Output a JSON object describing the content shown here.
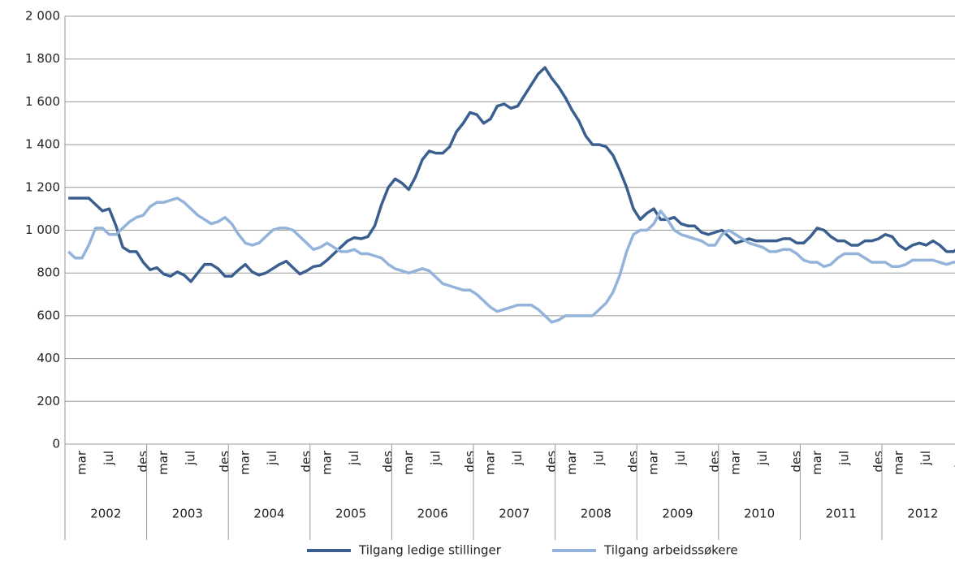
{
  "chart_data": {
    "type": "line",
    "categories": [
      null,
      null,
      "mar",
      null,
      null,
      null,
      "jul",
      null,
      null,
      null,
      null,
      "des",
      null,
      null,
      "mar",
      null,
      null,
      null,
      "jul",
      null,
      null,
      null,
      null,
      "des",
      null,
      null,
      "mar",
      null,
      null,
      null,
      "jul",
      null,
      null,
      null,
      null,
      "des",
      null,
      null,
      "mar",
      null,
      null,
      null,
      "jul",
      null,
      null,
      null,
      null,
      "des",
      null,
      null,
      "mar",
      null,
      null,
      null,
      "jul",
      null,
      null,
      null,
      null,
      "des",
      null,
      null,
      "mar",
      null,
      null,
      null,
      "jul",
      null,
      null,
      null,
      null,
      "des",
      null,
      null,
      "mar",
      null,
      null,
      null,
      "jul",
      null,
      null,
      null,
      null,
      "des",
      null,
      null,
      "mar",
      null,
      null,
      null,
      "jul",
      null,
      null,
      null,
      null,
      "des",
      null,
      null,
      "mar",
      null,
      null,
      null,
      "jul",
      null,
      null,
      null,
      null,
      "des",
      null,
      null,
      "mar",
      null,
      null,
      null,
      "jul",
      null,
      null,
      null,
      null,
      "des",
      null,
      null,
      "mar",
      null,
      null,
      null,
      "jul",
      null,
      null,
      null,
      null,
      "des"
    ],
    "year_groups": [
      "2002",
      "2003",
      "2004",
      "2005",
      "2006",
      "2007",
      "2008",
      "2009",
      "2010",
      "2011",
      "2012"
    ],
    "series": [
      {
        "name": "Tilgang ledige stillinger",
        "color": "#3a5f8f",
        "values": [
          1150,
          1150,
          1150,
          1150,
          1120,
          1090,
          1100,
          1020,
          920,
          900,
          900,
          850,
          815,
          825,
          795,
          785,
          805,
          790,
          760,
          800,
          840,
          840,
          820,
          785,
          785,
          815,
          840,
          805,
          790,
          800,
          820,
          840,
          855,
          825,
          795,
          810,
          830,
          835,
          860,
          890,
          920,
          950,
          965,
          960,
          970,
          1020,
          1120,
          1200,
          1240,
          1220,
          1190,
          1250,
          1330,
          1370,
          1360,
          1360,
          1390,
          1460,
          1500,
          1550,
          1540,
          1500,
          1520,
          1580,
          1590,
          1570,
          1580,
          1630,
          1680,
          1730,
          1760,
          1710,
          1670,
          1620,
          1560,
          1510,
          1440,
          1400,
          1400,
          1390,
          1350,
          1280,
          1200,
          1100,
          1050,
          1080,
          1100,
          1050,
          1050,
          1060,
          1030,
          1020,
          1020,
          990,
          980,
          990,
          1000,
          970,
          940,
          950,
          960,
          950,
          950,
          950,
          950,
          960,
          960,
          940,
          940,
          970,
          1010,
          1000,
          970,
          950,
          950,
          930,
          930,
          950,
          950,
          960,
          980,
          970,
          930,
          910,
          930,
          940,
          930,
          950,
          930,
          900,
          900,
          920
        ]
      },
      {
        "name": "Tilgang arbeidssøkere",
        "color": "#93b3da",
        "values": [
          900,
          870,
          870,
          930,
          1010,
          1010,
          980,
          980,
          1010,
          1040,
          1060,
          1070,
          1110,
          1130,
          1130,
          1140,
          1150,
          1130,
          1100,
          1070,
          1050,
          1030,
          1040,
          1060,
          1030,
          980,
          940,
          930,
          940,
          970,
          1000,
          1010,
          1010,
          1000,
          970,
          940,
          910,
          920,
          940,
          920,
          900,
          900,
          910,
          890,
          890,
          880,
          870,
          840,
          820,
          810,
          800,
          810,
          820,
          810,
          780,
          750,
          740,
          730,
          720,
          720,
          700,
          670,
          640,
          620,
          630,
          640,
          650,
          650,
          650,
          630,
          600,
          570,
          580,
          600,
          600,
          600,
          600,
          600,
          630,
          660,
          710,
          790,
          900,
          980,
          1000,
          1000,
          1030,
          1090,
          1050,
          1000,
          980,
          970,
          960,
          950,
          930,
          930,
          980,
          1000,
          980,
          960,
          940,
          930,
          920,
          900,
          900,
          910,
          910,
          890,
          860,
          850,
          850,
          830,
          840,
          870,
          890,
          890,
          890,
          870,
          850,
          850,
          850,
          830,
          830,
          840,
          860,
          860,
          860,
          860,
          850,
          840,
          850,
          850
        ]
      }
    ],
    "ylim": [
      0,
      2000
    ],
    "yticks": [
      0,
      200,
      400,
      600,
      800,
      {
        "value": 1000,
        "label": "1 000"
      },
      {
        "value": 1200,
        "label": "1 200"
      },
      {
        "value": 1400,
        "label": "1 400"
      },
      {
        "value": 1600,
        "label": "1 600"
      },
      {
        "value": 1800,
        "label": "1 800"
      },
      {
        "value": 2000,
        "label": "2 000"
      }
    ],
    "grid": true,
    "legend": "bottom"
  }
}
